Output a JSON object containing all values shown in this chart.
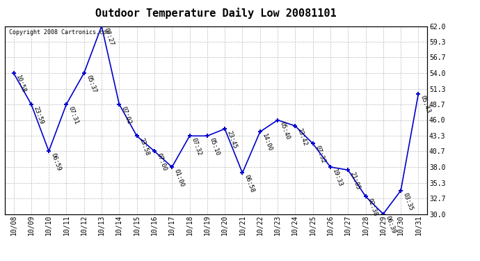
{
  "title": "Outdoor Temperature Daily Low 20081101",
  "copyright": "Copyright 2008 Cartronics.com",
  "x_labels": [
    "10/08",
    "10/09",
    "10/10",
    "10/11",
    "10/12",
    "10/13",
    "10/14",
    "10/15",
    "10/16",
    "10/17",
    "10/18",
    "10/19",
    "10/20",
    "10/21",
    "10/22",
    "10/23",
    "10/24",
    "10/25",
    "10/26",
    "10/27",
    "10/28",
    "10/29",
    "10/30",
    "10/31"
  ],
  "y_values": [
    54.0,
    48.7,
    40.7,
    48.7,
    54.0,
    62.0,
    48.7,
    43.3,
    40.7,
    38.0,
    43.3,
    43.3,
    44.5,
    37.0,
    44.0,
    46.0,
    45.0,
    42.0,
    38.0,
    37.5,
    33.0,
    30.0,
    34.0,
    50.5
  ],
  "point_labels": [
    "10:58",
    "23:59",
    "06:59",
    "07:31",
    "05:37",
    "07:27",
    "07:02",
    "23:58",
    "07:00",
    "01:00",
    "07:32",
    "05:10",
    "23:45",
    "06:58",
    "14:00",
    "05:40",
    "23:42",
    "07:32",
    "19:33",
    "21:05",
    "02:38",
    "06:39",
    "03:35",
    "05:43"
  ],
  "ylim": [
    30.0,
    62.0
  ],
  "yticks": [
    30.0,
    32.7,
    35.3,
    38.0,
    40.7,
    43.3,
    46.0,
    48.7,
    51.3,
    54.0,
    56.7,
    59.3,
    62.0
  ],
  "line_color": "#0000cc",
  "marker_color": "#0000cc",
  "bg_color": "#ffffff",
  "grid_color": "#bbbbbb",
  "title_fontsize": 11,
  "label_fontsize": 6.5,
  "tick_fontsize": 7,
  "copyright_fontsize": 6
}
